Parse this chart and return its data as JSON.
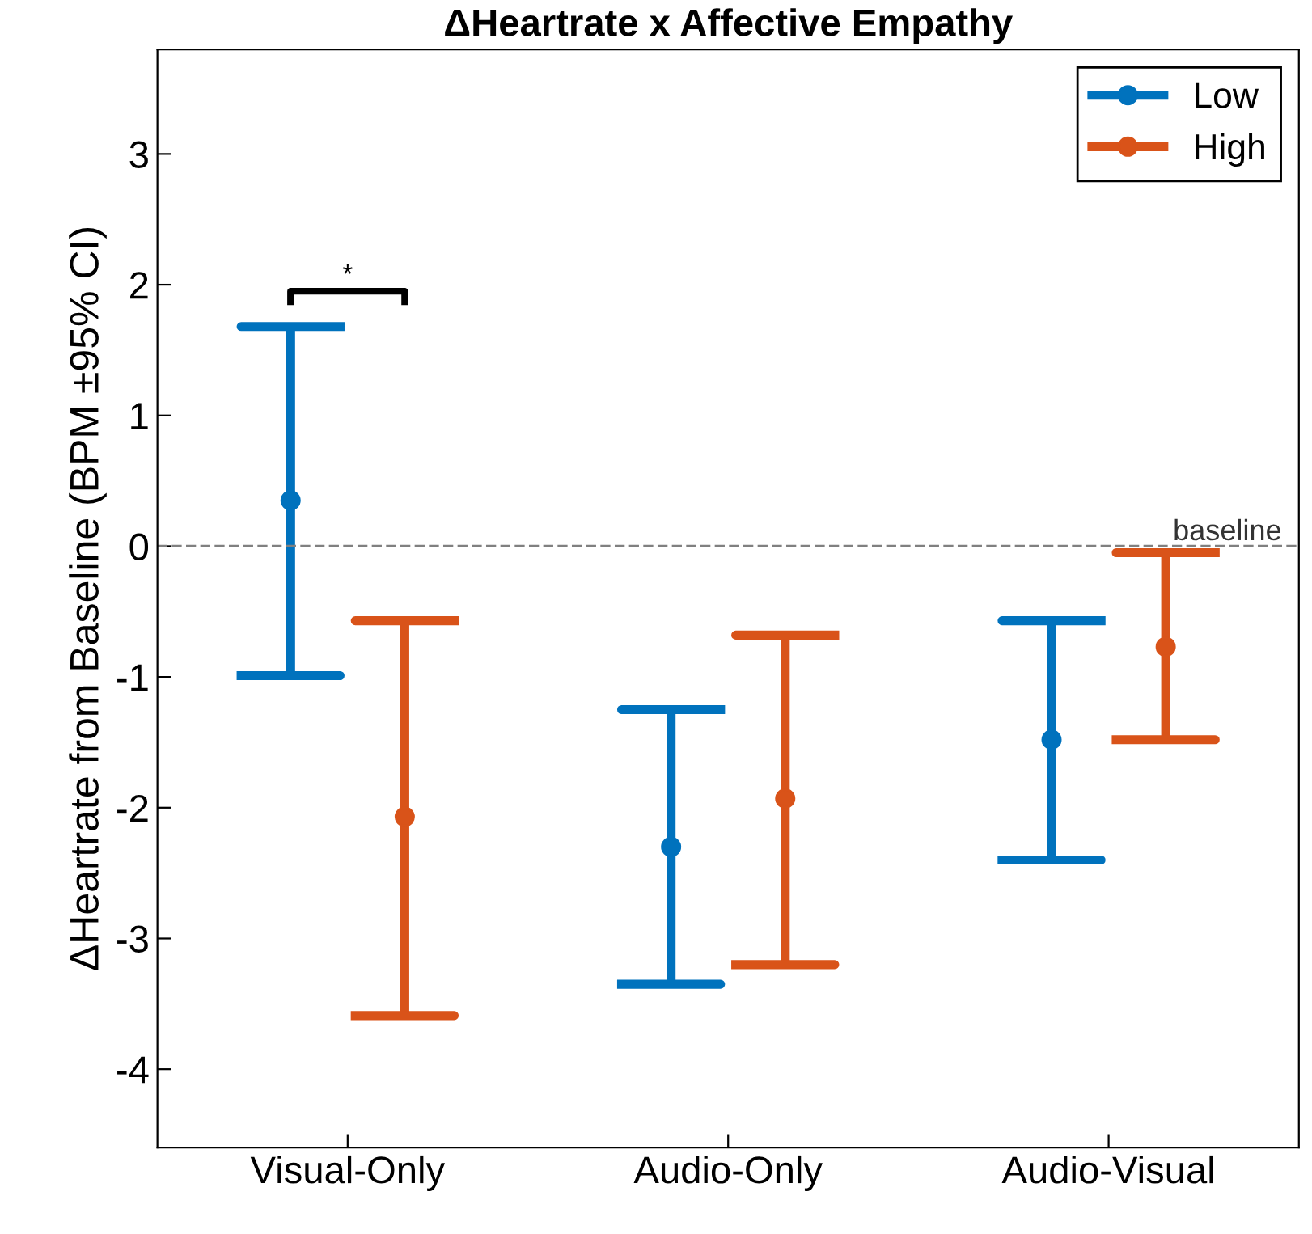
{
  "chart_data": {
    "type": "scatter",
    "title": "ΔHeartrate x Affective Empathy",
    "ylabel": "ΔHeartrate from Baseline (BPM ±95% CI)",
    "categories": [
      "Visual-Only",
      "Audio-Only",
      "Audio-Visual"
    ],
    "series": [
      {
        "name": "Low",
        "color": "#0072bd",
        "values": [
          0.35,
          -2.3,
          -1.48
        ],
        "errors": [
          [
            -0.99,
            1.68
          ],
          [
            -3.35,
            -1.25
          ],
          [
            -2.4,
            -0.57
          ]
        ]
      },
      {
        "name": "High",
        "color": "#d95319",
        "values": [
          -2.07,
          -1.93,
          -0.77
        ],
        "errors": [
          [
            -3.59,
            -0.57
          ],
          [
            -3.2,
            -0.68
          ],
          [
            -1.48,
            -0.05
          ]
        ]
      }
    ],
    "ylim": [
      -4.6,
      3.8
    ],
    "yticks": [
      -4,
      -3,
      -2,
      -1,
      0,
      1,
      2,
      3
    ],
    "ref_lines": [
      {
        "axis": "y",
        "value": 0,
        "label": "baseline",
        "color": "#808080",
        "line_style": "dashed"
      }
    ],
    "annotations": [
      "*"
    ],
    "marker": "circle",
    "legend": "top right",
    "grid": false
  }
}
